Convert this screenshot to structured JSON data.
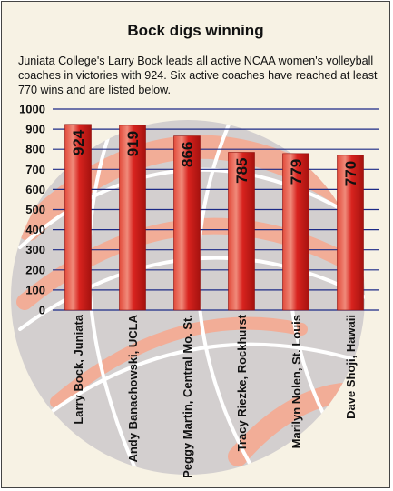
{
  "header": {
    "title": "Bock digs winning",
    "description": "Juniata College's Larry Bock leads all active NCAA women's volleyball coaches in victories with 924. Six active coaches have reached at least 770 wins and are listed below."
  },
  "chart_data": {
    "type": "bar",
    "title": "Bock digs winning",
    "categories": [
      "Larry Bock, Juniata",
      "Andy Banachowski, UCLA",
      "Peggy Martin, Central Mo. St.",
      "Tracy Riezke, Rockhurst",
      "Marilyn Nolen, St. Louis",
      "Dave Shoji, Hawaii"
    ],
    "values": [
      924,
      919,
      866,
      785,
      779,
      770
    ],
    "ylim": [
      0,
      1000
    ],
    "yticks": [
      0,
      100,
      200,
      300,
      400,
      500,
      600,
      700,
      800,
      900,
      1000
    ],
    "grid": true,
    "value_labels": true,
    "colors": {
      "bar": "#d8231e",
      "bar_highlight": "#f08a7a",
      "gridline": "#1c2a86",
      "background": "#f7f2e4",
      "ball_fill": "#d3cfcf",
      "ball_stripe": "#f2ad97",
      "ball_line": "#ffffff"
    }
  }
}
